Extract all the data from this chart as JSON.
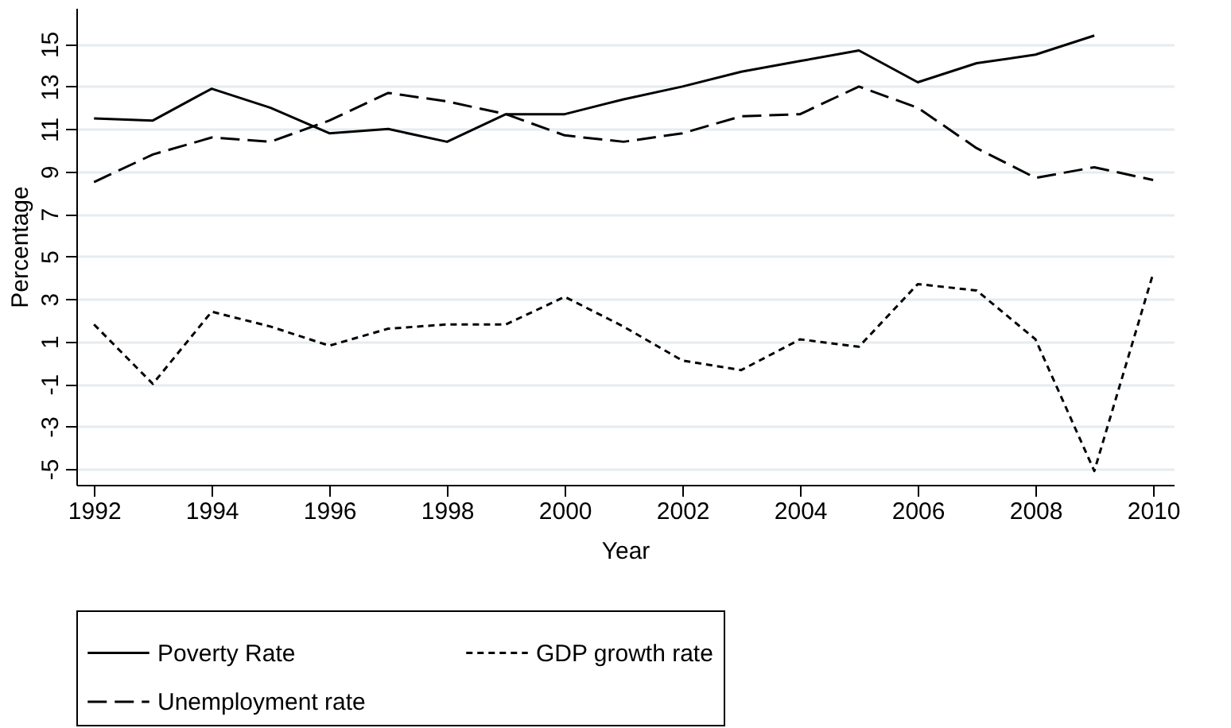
{
  "chart_data": {
    "type": "line",
    "xlabel": "Year",
    "ylabel": "Percentage",
    "x": [
      1992,
      1993,
      1994,
      1995,
      1996,
      1997,
      1998,
      1999,
      2000,
      2001,
      2002,
      2003,
      2004,
      2005,
      2006,
      2007,
      2008,
      2009,
      2010
    ],
    "xlim": [
      1991.7,
      2010.35
    ],
    "xticks": [
      1992,
      1994,
      1996,
      1998,
      2000,
      2002,
      2004,
      2006,
      2008,
      2010
    ],
    "ylim": [
      -5.75,
      16.7
    ],
    "yticks": [
      -5,
      -3,
      -1,
      1,
      3,
      5,
      7,
      9,
      11,
      13,
      15
    ],
    "grid": "y",
    "legend": "bottom",
    "series": [
      {
        "name": "Poverty Rate",
        "color": "#000000",
        "line_style": "solid",
        "values": [
          11.5,
          11.4,
          12.9,
          12.0,
          10.8,
          11.0,
          10.4,
          11.7,
          11.7,
          12.4,
          13.0,
          13.7,
          14.2,
          14.7,
          13.2,
          14.1,
          14.5,
          15.4,
          null
        ]
      },
      {
        "name": "GDP growth rate",
        "color": "#000000",
        "line_style": "dotted",
        "values": [
          1.8,
          -1.0,
          2.4,
          1.7,
          0.8,
          1.6,
          1.8,
          1.8,
          3.1,
          1.7,
          0.1,
          -0.35,
          1.1,
          0.75,
          3.7,
          3.4,
          1.1,
          -5.1,
          4.2
        ]
      },
      {
        "name": "Unemployment rate",
        "color": "#000000",
        "line_style": "dashed",
        "values": [
          8.5,
          9.8,
          10.6,
          10.4,
          11.4,
          12.7,
          12.3,
          11.7,
          10.7,
          10.4,
          10.8,
          11.6,
          11.7,
          13.0,
          12.0,
          10.1,
          8.7,
          9.2,
          8.6
        ]
      }
    ]
  }
}
